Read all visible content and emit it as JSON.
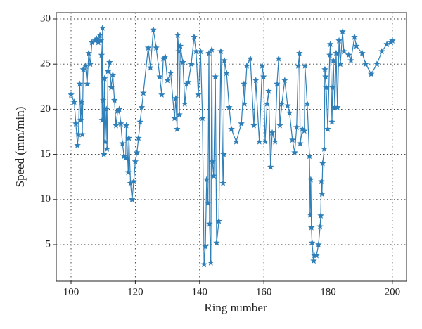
{
  "chart_data": {
    "type": "line",
    "marker": "star",
    "color": "#2f7fb9",
    "xlabel": "Ring number",
    "ylabel": "Speed (mm/min)",
    "xlim": [
      95.4,
      204.4
    ],
    "ylim": [
      0.95,
      30.7
    ],
    "xticks": [
      100,
      120,
      140,
      160,
      180,
      200
    ],
    "yticks": [
      5,
      10,
      15,
      20,
      25,
      30
    ],
    "grid": true,
    "x": [
      100,
      101,
      101.5,
      102,
      102.3,
      102.7,
      103,
      103.3,
      103.5,
      103.8,
      104.5,
      105,
      105.5,
      106,
      106.5,
      107.5,
      108,
      108.5,
      109,
      109.3,
      109.5,
      109.7,
      109.8,
      110,
      110.2,
      110.4,
      110.6,
      111,
      111.2,
      111.5,
      112,
      112.5,
      113,
      113.5,
      114,
      114.5,
      115,
      115.5,
      116,
      116.5,
      117,
      117.2,
      117.8,
      118,
      118.5,
      119,
      119.5,
      120,
      120.5,
      121,
      121.5,
      122,
      122.5,
      124,
      124.7,
      125.6,
      126.5,
      127.6,
      128.2,
      128.7,
      129.3,
      130,
      131,
      132.2,
      132.6,
      133,
      133.2,
      133.5,
      133.7,
      134,
      134.8,
      135.4,
      136,
      136.5,
      137.4,
      138.3,
      138.9,
      139.6,
      140.3,
      140.9,
      141.4,
      141.8,
      142.2,
      142.6,
      142.9,
      143.1,
      143.5,
      143.8,
      144,
      144.4,
      144.9,
      145.3,
      146,
      146.6,
      147.3,
      147.5,
      147.7,
      148.4,
      149.2,
      149.9,
      151.4,
      153,
      153.8,
      154,
      154.7,
      155.8,
      156.9,
      157.5,
      158.6,
      159.5,
      159.9,
      160.4,
      161,
      161.5,
      162.1,
      162.6,
      163.5,
      164.1,
      164.6,
      165,
      165.6,
      166.5,
      167.4,
      168,
      168.9,
      169.6,
      170.2,
      170.7,
      171.1,
      171.3,
      172,
      172.6,
      172.8,
      173.5,
      174.2,
      174.4,
      174.6,
      174.8,
      175,
      175.5,
      175.7,
      176.4,
      177,
      177.5,
      177.7,
      177.9,
      178.1,
      178.3,
      178.8,
      179,
      179.2,
      179.4,
      179.9,
      180.5,
      180.7,
      181.2,
      181.4,
      181.6,
      182.1,
      182.5,
      182.9,
      183.4,
      183.8,
      184.5,
      184.9,
      186.4,
      187.1,
      188.2,
      188.8,
      190.6,
      191.7,
      193.4,
      195.2,
      196.7,
      198.3,
      199.6,
      200
    ],
    "values": [
      21.6,
      20.8,
      18.4,
      16,
      17.2,
      22.8,
      18.8,
      20.8,
      17.2,
      24.4,
      24.8,
      22.8,
      26.2,
      25,
      27.4,
      27.6,
      27.8,
      27.4,
      28.2,
      27.6,
      26,
      18.8,
      29,
      21,
      15,
      23.4,
      16.4,
      20,
      15.6,
      24.2,
      25.2,
      22.4,
      23.8,
      21,
      18.2,
      19.8,
      20,
      18.4,
      16.2,
      14.8,
      14.6,
      18.2,
      13,
      16.8,
      11.8,
      10,
      12,
      14.2,
      15.2,
      16.8,
      18.6,
      20.2,
      21.8,
      26.8,
      24.6,
      28.8,
      26.8,
      23.6,
      21.6,
      25.6,
      25.8,
      23.2,
      24,
      19,
      21.2,
      17.8,
      28.2,
      26.4,
      19.4,
      27,
      25.2,
      20.6,
      22.8,
      23,
      25,
      28,
      26.4,
      21.6,
      26.4,
      19,
      2.8,
      4.8,
      12.2,
      9.6,
      26.2,
      7.3,
      3,
      26.6,
      14.2,
      12.6,
      23.6,
      5.2,
      7.6,
      26.4,
      11.8,
      15,
      25.4,
      24,
      20.2,
      17.8,
      16.4,
      18.4,
      22.8,
      20.6,
      24.8,
      25.6,
      18.2,
      23.2,
      16.4,
      24.8,
      23.6,
      16.4,
      20.6,
      22,
      13.6,
      17.4,
      16.4,
      22.8,
      25.6,
      18.2,
      20.6,
      23.2,
      20.4,
      19.6,
      16.6,
      15.2,
      18,
      24.8,
      26.2,
      16.2,
      17.8,
      17.6,
      24.8,
      20.6,
      14.8,
      8.3,
      12.2,
      6.9,
      5.2,
      3.2,
      3.8,
      3.8,
      5,
      7,
      8.2,
      12,
      10.6,
      14,
      15.6,
      24.4,
      23.6,
      22.4,
      17.8,
      26,
      27.2,
      18.6,
      22.4,
      25.4,
      20.2,
      26.2,
      20.2,
      27.6,
      25,
      28.6,
      26.4,
      26,
      25.4,
      28,
      27,
      26.2,
      25,
      23.9,
      25,
      26.4,
      27.2,
      27.4,
      27.6
    ]
  }
}
